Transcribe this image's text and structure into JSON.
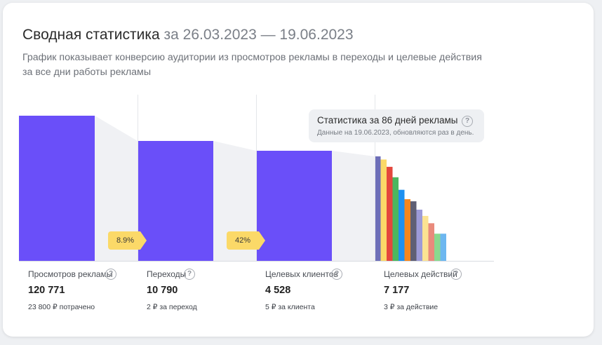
{
  "header": {
    "title": "Сводная статистика",
    "date_range": "за 26.03.2023 — 19.06.2023",
    "subtitle": "График показывает конверсию аудитории из просмотров рекламы в переходы и целевые действия за все дни работы рекламы"
  },
  "tooltip": {
    "title": "Статистика за 86 дней рекламы",
    "subtitle": "Данные на 19.06.2023, обновляются раз в день.",
    "help_glyph": "?"
  },
  "conversions": [
    {
      "label": "8.9%"
    },
    {
      "label": "42%"
    }
  ],
  "metrics": [
    {
      "label": "Просмотров рекламы",
      "value": "120 771",
      "sub": "23 800 ₽ потрачено"
    },
    {
      "label": "Переходы",
      "value": "10 790",
      "sub": "2 ₽ за переход"
    },
    {
      "label": "Целевых клиентов",
      "value": "4 528",
      "sub": "5 ₽ за клиента"
    },
    {
      "label": "Целевых действий",
      "value": "7 177",
      "sub": "3 ₽ за действие"
    }
  ],
  "colors": {
    "bar": "#6a4ff9",
    "connector": "#f0f1f4",
    "badge": "#fbd968",
    "action_bars": [
      "#6e6fb8",
      "#fbd968",
      "#e4473d",
      "#4bb75f",
      "#1e90f0",
      "#f5861c",
      "#5f5f74",
      "#9d9bd8",
      "#fbe392",
      "#e98a7c",
      "#89d98e",
      "#6db7f0"
    ]
  },
  "action_levels": [
    1.0,
    0.97,
    0.9,
    0.8,
    0.68,
    0.59,
    0.57,
    0.49,
    0.43,
    0.36,
    0.26,
    0.26
  ]
}
